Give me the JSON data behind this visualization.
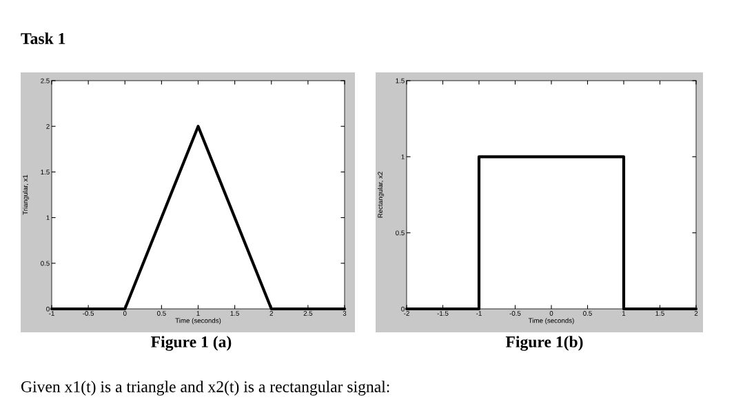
{
  "chart_data": [
    {
      "type": "line",
      "xlabel": "Time (seconds)",
      "ylabel": "Triangular, x1",
      "x": [
        -1,
        0,
        1,
        2,
        3
      ],
      "values": [
        0,
        0,
        2,
        0,
        0
      ],
      "color": "#000000",
      "xlim": [
        -1,
        3
      ],
      "xticks": [
        -1,
        -0.5,
        0,
        0.5,
        1,
        1.5,
        2,
        2.5,
        3
      ],
      "ylim": [
        0,
        2.5
      ],
      "yticks": [
        0,
        0.5,
        1,
        1.5,
        2,
        2.5
      ],
      "grid": false,
      "line_style": "solid",
      "annotations": [
        "Task 1",
        "Figure 1 (a)",
        "Given x1(t) is a triangle and x2(t) is a rectangular signal:"
      ]
    },
    {
      "type": "line",
      "xlabel": "Time (seconds)",
      "ylabel": "Rectangular, x2",
      "x": [
        -2,
        -1,
        -1,
        1,
        1,
        2
      ],
      "values": [
        0,
        0,
        1,
        1,
        0,
        0
      ],
      "color": "#000000",
      "xlim": [
        -2,
        2
      ],
      "xticks": [
        -2,
        -1.5,
        -1,
        -0.5,
        0,
        0.5,
        1,
        1.5,
        2
      ],
      "ylim": [
        0,
        1.5
      ],
      "yticks": [
        0,
        0.5,
        1,
        1.5
      ],
      "grid": false,
      "line_style": "solid",
      "annotations": [
        "Figure 1(b)"
      ]
    }
  ]
}
